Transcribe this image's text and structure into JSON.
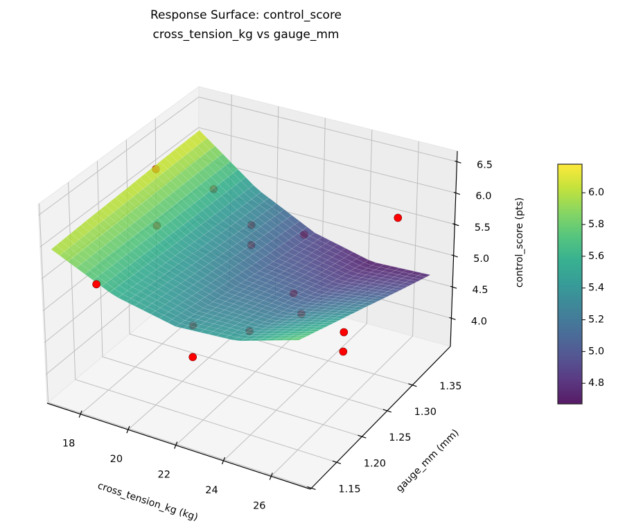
{
  "chart_data": {
    "type": "surface",
    "title": "Response Surface: control_score",
    "subtitle": "cross_tension_kg vs gauge_mm",
    "xlabel": "cross_tension_kg (kg)",
    "ylabel": "gauge_mm (mm)",
    "zlabel": "control_score (pts)",
    "xlim": [
      16.6,
      27.65
    ],
    "ylim": [
      1.148,
      1.425
    ],
    "zlim": [
      3.55,
      6.67
    ],
    "xticks": [
      "18",
      "20",
      "22",
      "24",
      "26"
    ],
    "yticks": [
      "1.15",
      "1.20",
      "1.25",
      "1.30",
      "1.35"
    ],
    "zticks": [
      "4.0",
      "4.5",
      "5.0",
      "5.5",
      "6.0",
      "6.5"
    ],
    "grid": true,
    "colormap": "viridis",
    "surface": {
      "x": [
        17,
        19.5,
        22,
        24.5,
        27
      ],
      "y": [
        1.15,
        1.215,
        1.28,
        1.345,
        1.41
      ],
      "z": [
        [
          6.0,
          6.03,
          6.05,
          6.08,
          6.1
        ],
        [
          5.58,
          5.53,
          5.48,
          5.43,
          5.39
        ],
        [
          5.4,
          5.28,
          5.16,
          5.04,
          4.93
        ],
        [
          5.48,
          5.28,
          5.09,
          4.9,
          4.71
        ],
        [
          5.8,
          5.54,
          5.28,
          5.01,
          4.75
        ]
      ]
    },
    "points": [
      {
        "x": 17.74,
        "y": 1.303,
        "z": 6.3
      },
      {
        "x": 19.33,
        "y": 1.338,
        "z": 5.9
      },
      {
        "x": 18.25,
        "y": 1.282,
        "z": 5.6
      },
      {
        "x": 20.95,
        "y": 1.337,
        "z": 5.5
      },
      {
        "x": 22.78,
        "y": 1.355,
        "z": 5.4
      },
      {
        "x": 25.71,
        "y": 1.402,
        "z": 5.6
      },
      {
        "x": 20.95,
        "y": 1.337,
        "z": 5.18
      },
      {
        "x": 17.19,
        "y": 1.218,
        "z": 5.0
      },
      {
        "x": 23.43,
        "y": 1.307,
        "z": 4.9
      },
      {
        "x": 23.75,
        "y": 1.308,
        "z": 4.6
      },
      {
        "x": 20.27,
        "y": 1.259,
        "z": 4.4
      },
      {
        "x": 22.47,
        "y": 1.267,
        "z": 4.5
      },
      {
        "x": 25.13,
        "y": 1.328,
        "z": 4.3
      },
      {
        "x": 20.93,
        "y": 1.229,
        "z": 4.2
      },
      {
        "x": 25.14,
        "y": 1.327,
        "z": 4.0
      }
    ],
    "point_color": "#ff0000",
    "colorbar": {
      "range": [
        4.67,
        6.18
      ],
      "ticks": [
        "4.8",
        "5.0",
        "5.2",
        "5.4",
        "5.6",
        "5.8",
        "6.0"
      ]
    }
  }
}
